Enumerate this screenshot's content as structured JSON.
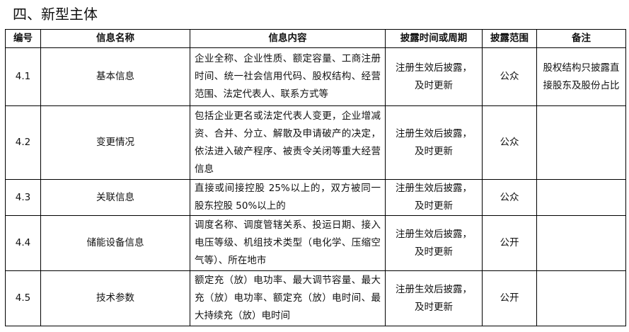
{
  "title": "四、新型主体",
  "headers": [
    "编号",
    "信息名称",
    "信息内容",
    "披露时间或周期",
    "披露范围",
    "备注"
  ],
  "rows": [
    {
      "id": "4.1",
      "name": "基本信息",
      "content": "企业全称、企业性质、额定容量、工商注册时间、统一社会信用代码、股权结构、经营范围、法定代表人、联系方式等",
      "period": "注册生效后披露，及时更新",
      "scope": "公众",
      "note": "股权结构只披露直接股东及股份占比"
    },
    {
      "id": "4.2",
      "name": "变更情况",
      "content": "包括企业更名或法定代表人变更，企业增减资、合并、分立、解散及申请破产的决定，依法进入破产程序、被责令关闭等重大经营信息",
      "period": "注册生效后披露，及时更新",
      "scope": "公众",
      "note": ""
    },
    {
      "id": "4.3",
      "name": "关联信息",
      "content": "直接或间接控股 25%以上的，双方被同一股东控股 50%以上的",
      "period": "注册生效后披露，及时更新",
      "scope": "公众",
      "note": ""
    },
    {
      "id": "4.4",
      "name": "储能设备信息",
      "content": "调度名称、调度管辖关系、投运日期、接入电压等级、机组技术类型（电化学、压缩空气等）、所在地市",
      "period": "注册生效后披露，及时更新",
      "scope": "公开",
      "note": ""
    },
    {
      "id": "4.5",
      "name": "技术参数",
      "content": "额定充（放）电功率、最大调节容量、最大充（放）电功率、额定充（放）电时间、最大持续充（放）电时间",
      "period": "注册生效后披露，及时更新",
      "scope": "公开",
      "note": ""
    }
  ]
}
